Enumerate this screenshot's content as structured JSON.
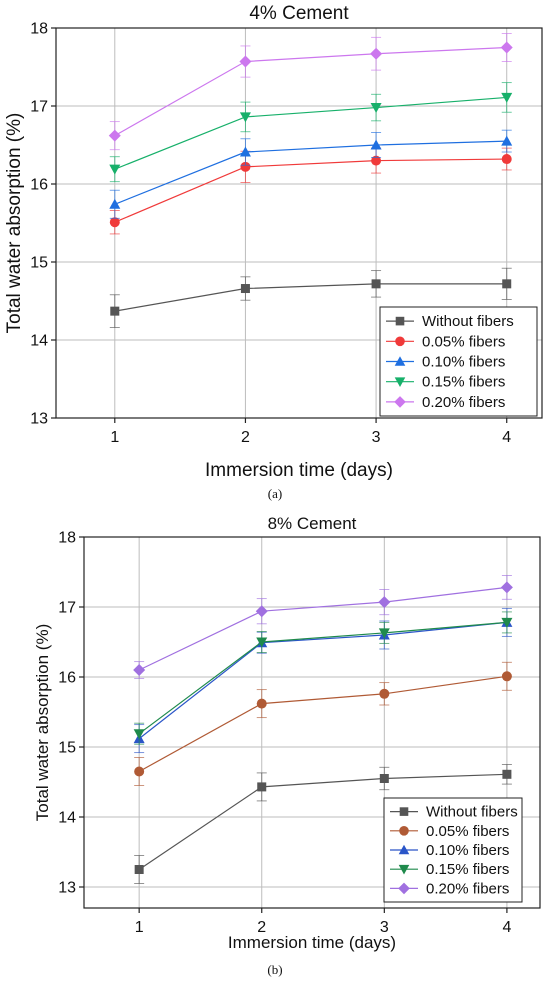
{
  "chart_data": [
    {
      "type": "line",
      "title": "4% Cement",
      "xlabel": "Immersion time (days)",
      "ylabel": "Total water absorption (%)",
      "caption": "(a)",
      "x": [
        1,
        2,
        3,
        4
      ],
      "xticks": [
        "1",
        "2",
        "3",
        "4"
      ],
      "xlim": [
        0.55,
        4.27
      ],
      "ylim": [
        13,
        18
      ],
      "yticks": [
        "13",
        "14",
        "15",
        "16",
        "17",
        "18"
      ],
      "grid": true,
      "legend_position": "bottom-right",
      "series": [
        {
          "name": "Without fibers",
          "values": [
            14.37,
            14.66,
            14.72,
            14.72
          ],
          "err": [
            0.21,
            0.15,
            0.17,
            0.2
          ],
          "color": "#555555",
          "marker": "square"
        },
        {
          "name": "0.05% fibers",
          "values": [
            15.51,
            16.22,
            16.3,
            16.32
          ],
          "err": [
            0.15,
            0.2,
            0.16,
            0.14
          ],
          "color": "#f03a3a",
          "marker": "circle"
        },
        {
          "name": "0.10% fibers",
          "values": [
            15.74,
            16.41,
            16.5,
            16.55
          ],
          "err": [
            0.18,
            0.17,
            0.16,
            0.14
          ],
          "color": "#1f6fe0",
          "marker": "triangle-up"
        },
        {
          "name": "0.15% fibers",
          "values": [
            16.19,
            16.86,
            16.98,
            17.11
          ],
          "err": [
            0.16,
            0.19,
            0.17,
            0.19
          ],
          "color": "#17b06a",
          "marker": "triangle-down"
        },
        {
          "name": "0.20% fibers",
          "values": [
            16.62,
            17.57,
            17.67,
            17.75
          ],
          "err": [
            0.18,
            0.2,
            0.21,
            0.18
          ],
          "color": "#cc77ee",
          "marker": "diamond"
        }
      ]
    },
    {
      "type": "line",
      "title": "8% Cement",
      "xlabel": "Immersion time (days)",
      "ylabel": "Total water absorption (%)",
      "caption": "(b)",
      "x": [
        1,
        2,
        3,
        4
      ],
      "xticks": [
        "1",
        "2",
        "3",
        "4"
      ],
      "xlim": [
        0.55,
        4.27
      ],
      "ylim": [
        12.7,
        18
      ],
      "yticks": [
        "13",
        "14",
        "15",
        "16",
        "17",
        "18"
      ],
      "grid": true,
      "legend_position": "bottom-right",
      "series": [
        {
          "name": "Without fibers",
          "values": [
            13.25,
            14.43,
            14.55,
            14.61
          ],
          "err": [
            0.2,
            0.2,
            0.16,
            0.14
          ],
          "color": "#555555",
          "marker": "square"
        },
        {
          "name": "0.05% fibers",
          "values": [
            14.65,
            15.62,
            15.76,
            16.01
          ],
          "err": [
            0.2,
            0.2,
            0.16,
            0.2
          ],
          "color": "#b05a35",
          "marker": "circle"
        },
        {
          "name": "0.10% fibers",
          "values": [
            15.12,
            16.49,
            16.6,
            16.78
          ],
          "err": [
            0.2,
            0.15,
            0.2,
            0.2
          ],
          "color": "#2a55c8",
          "marker": "triangle-up"
        },
        {
          "name": "0.15% fibers",
          "values": [
            15.19,
            16.5,
            16.63,
            16.78
          ],
          "err": [
            0.15,
            0.15,
            0.15,
            0.15
          ],
          "color": "#1f8a4c",
          "marker": "triangle-down"
        },
        {
          "name": "0.20% fibers",
          "values": [
            16.1,
            16.94,
            17.07,
            17.28
          ],
          "err": [
            0.12,
            0.18,
            0.18,
            0.17
          ],
          "color": "#a070e0",
          "marker": "diamond"
        }
      ]
    }
  ]
}
